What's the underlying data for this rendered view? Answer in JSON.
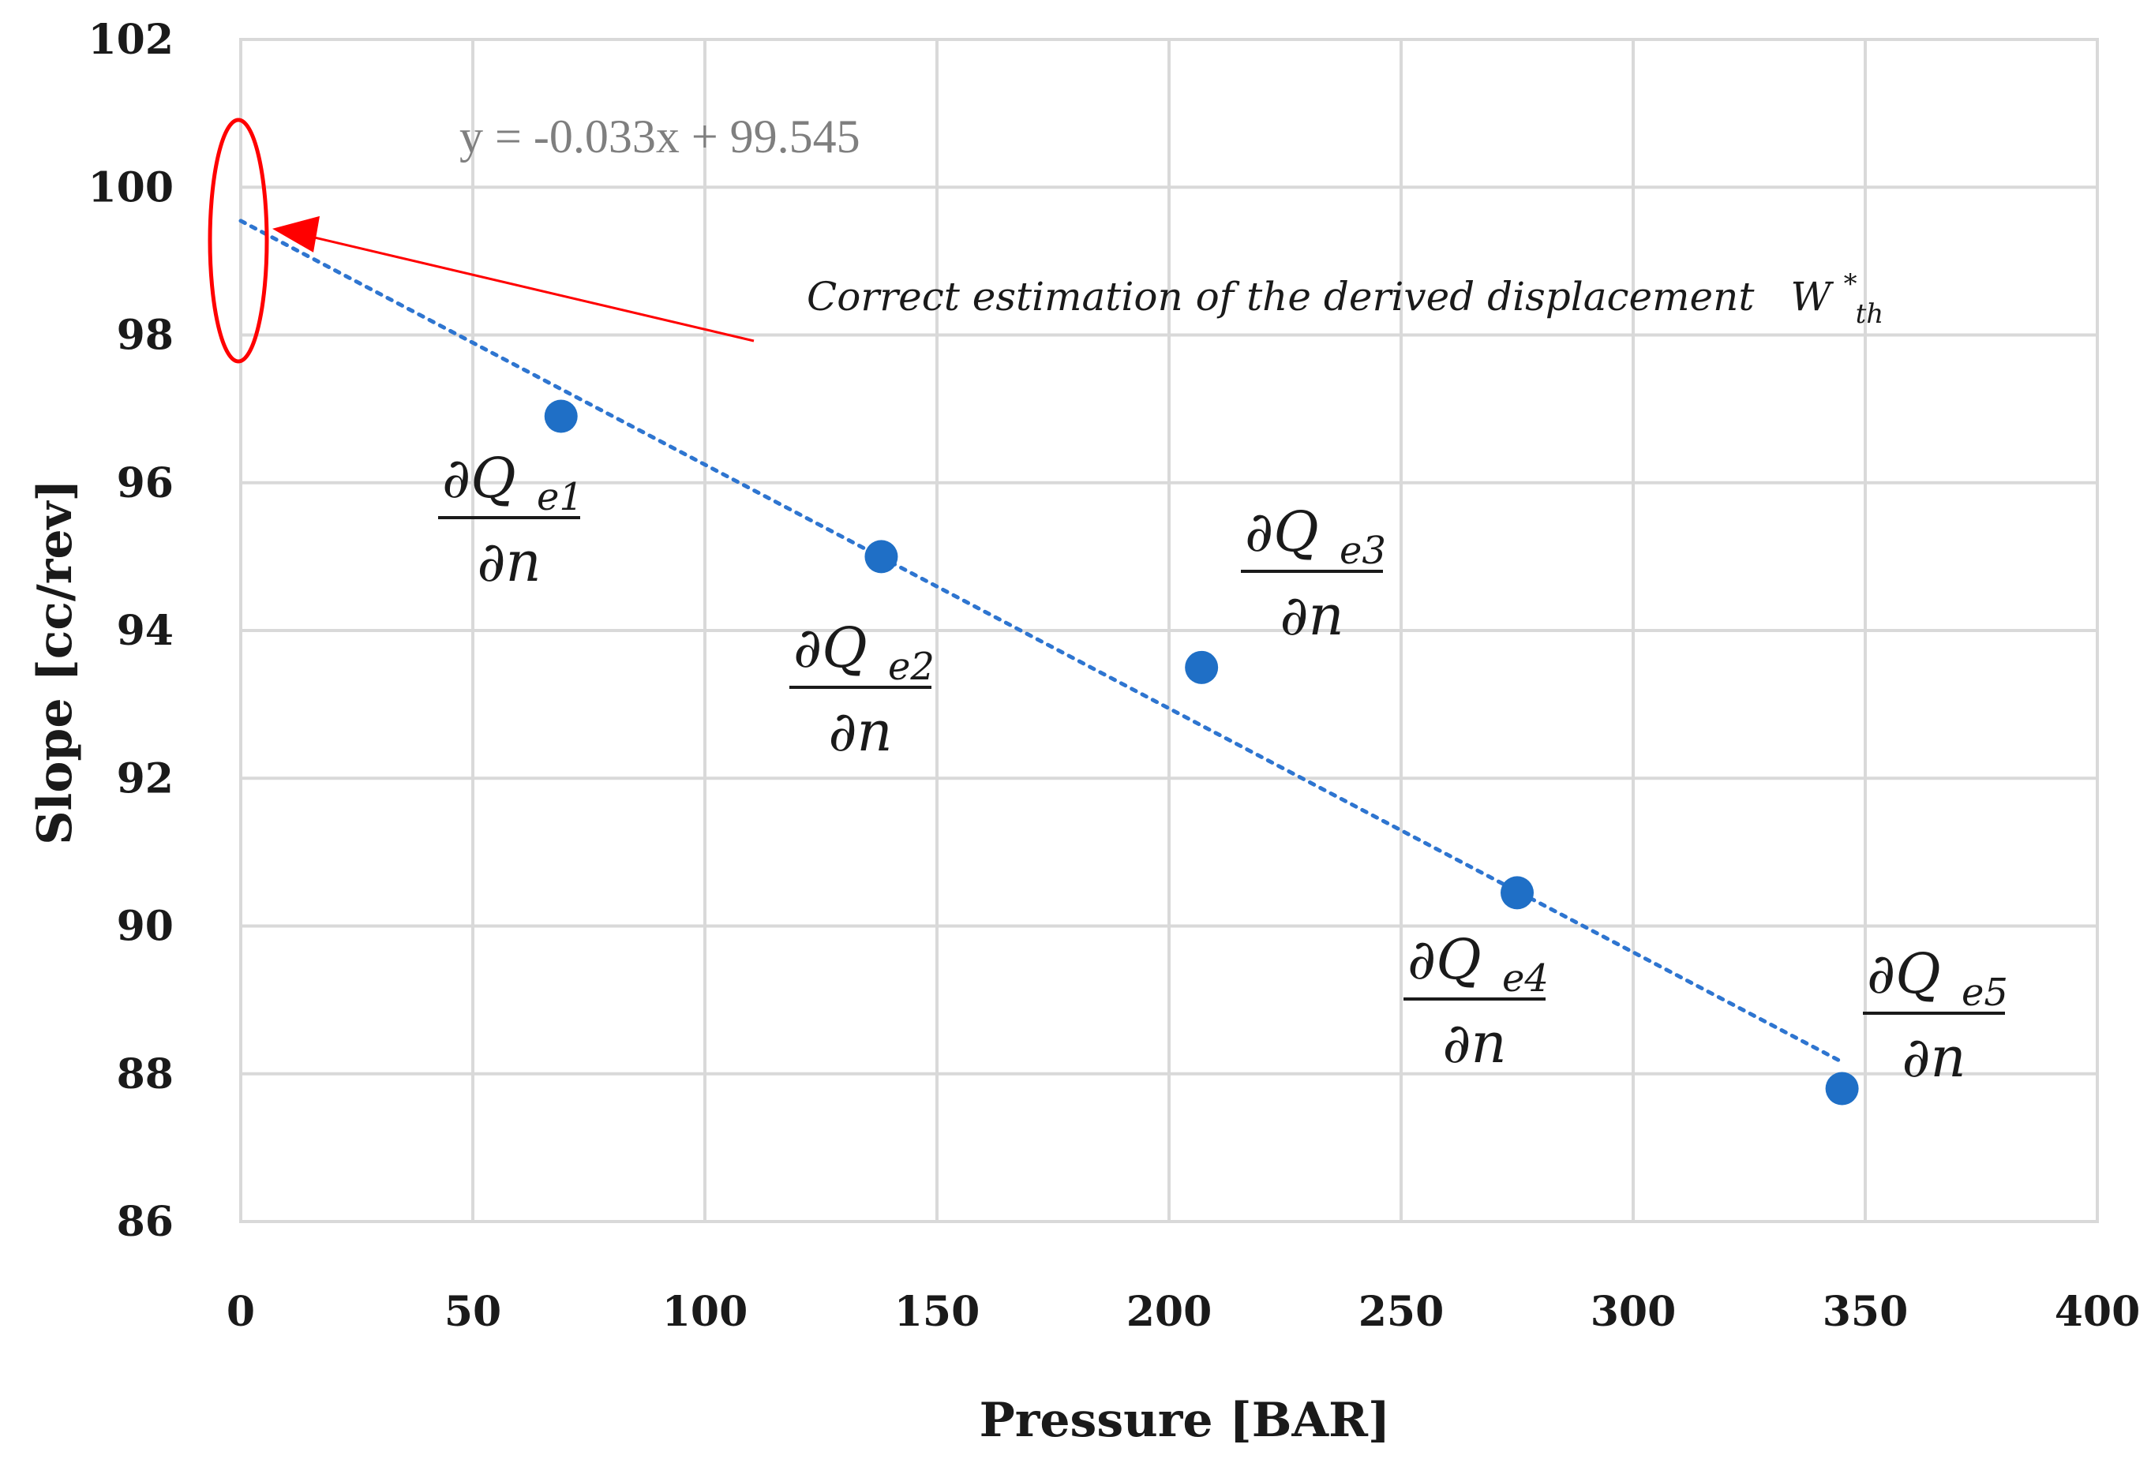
{
  "chart_data": {
    "type": "scatter",
    "title": "",
    "xlabel": "Pressure [BAR]",
    "ylabel": "Slope [cc/rev]",
    "xlim": [
      0,
      400
    ],
    "ylim": [
      86,
      102
    ],
    "x_ticks": [
      0,
      50,
      100,
      150,
      200,
      250,
      300,
      350,
      400
    ],
    "y_ticks": [
      86,
      88,
      90,
      92,
      94,
      96,
      98,
      100,
      102
    ],
    "grid": true,
    "series": [
      {
        "name": "Slope",
        "color": "#1f6fc6",
        "points": [
          {
            "x": 69,
            "y": 96.9,
            "label": "∂Qe1/∂n"
          },
          {
            "x": 138,
            "y": 95.0,
            "label": "∂Qe2/∂n"
          },
          {
            "x": 207,
            "y": 93.5,
            "label": "∂Qe3/∂n"
          },
          {
            "x": 275,
            "y": 90.45,
            "label": "∂Qe4/∂n"
          },
          {
            "x": 345,
            "y": 87.8,
            "label": "∂Qe5/∂n"
          }
        ]
      }
    ],
    "trendline": {
      "type": "linear",
      "slope": -0.033,
      "intercept": 99.545,
      "x_range": [
        0,
        345
      ],
      "equation": "y = -0.033x + 99.545",
      "color": "#2e75d0",
      "style": "dotted"
    },
    "annotation": {
      "text": "Correct estimation of the derived displacement",
      "symbol": "W",
      "symbol_sub": "th",
      "symbol_sup": "*",
      "target_x": 0,
      "target_y": 99.545,
      "color": "#ff0000"
    },
    "point_labels": [
      {
        "numerator": "∂Q",
        "subscript": "e1",
        "denominator": "∂n"
      },
      {
        "numerator": "∂Q",
        "subscript": "e2",
        "denominator": "∂n"
      },
      {
        "numerator": "∂Q",
        "subscript": "e3",
        "denominator": "∂n"
      },
      {
        "numerator": "∂Q",
        "subscript": "e4",
        "denominator": "∂n"
      },
      {
        "numerator": "∂Q",
        "subscript": "e5",
        "denominator": "∂n"
      }
    ]
  }
}
